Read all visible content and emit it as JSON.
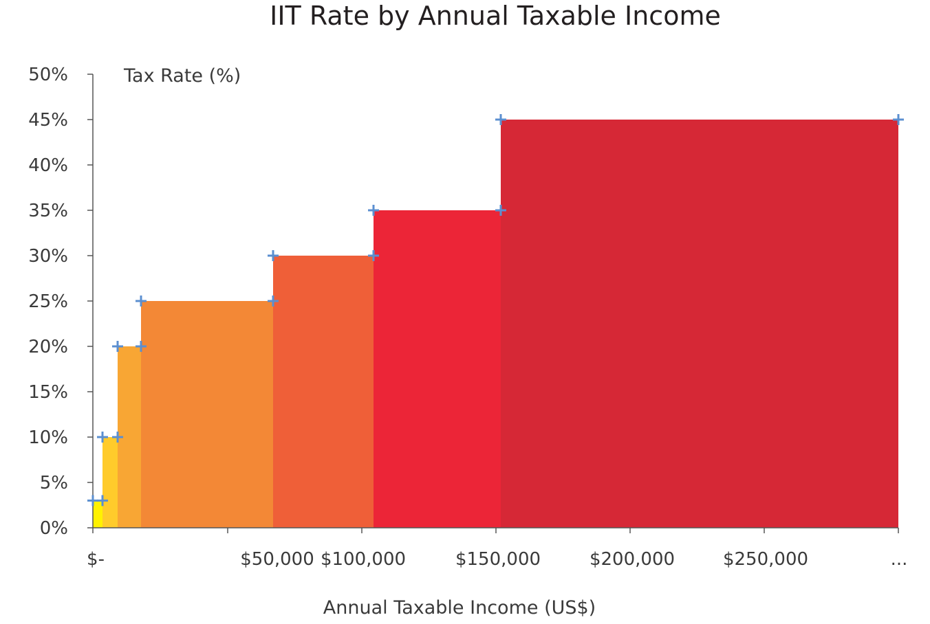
{
  "chart_data": {
    "type": "area",
    "title": "IIT Rate by Annual Taxable Income",
    "xlabel": "Annual Taxable Income (US$)",
    "ylabel": "Tax Rate (%)",
    "ylim": [
      0,
      50
    ],
    "y_ticks": [
      "0%",
      "5%",
      "10%",
      "15%",
      "20%",
      "25%",
      "30%",
      "35%",
      "40%",
      "45%",
      "50%"
    ],
    "x_ticks": [
      "$-",
      "$50,000",
      "$100,000",
      "$150,000",
      "$200,000",
      "$250,000",
      "..."
    ],
    "x_tick_positions": [
      0,
      50000,
      100000,
      150000,
      200000,
      250000,
      300000
    ],
    "grid": false,
    "brackets": [
      {
        "from": 0,
        "to": 3500,
        "rate": 3,
        "color": "#fff200"
      },
      {
        "from": 3500,
        "to": 9000,
        "rate": 10,
        "color": "#ffcb2b"
      },
      {
        "from": 9000,
        "to": 18000,
        "rate": 20,
        "color": "#f8a634"
      },
      {
        "from": 18000,
        "to": 67000,
        "rate": 25,
        "color": "#f38836"
      },
      {
        "from": 67000,
        "to": 104500,
        "rate": 30,
        "color": "#ef5f38"
      },
      {
        "from": 104500,
        "to": 152000,
        "rate": 35,
        "color": "#ec2537"
      },
      {
        "from": 152000,
        "to": 300000,
        "rate": 45,
        "color": "#d62836"
      }
    ]
  }
}
